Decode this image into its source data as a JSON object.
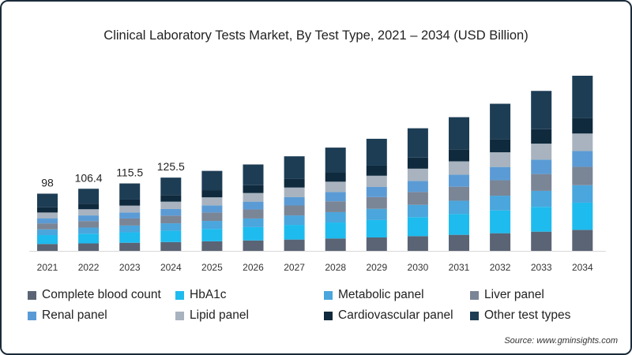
{
  "chart_data": {
    "type": "bar",
    "stacked": true,
    "title": "Clinical Laboratory Tests Market, By Test Type, 2021 – 2034 (USD Billion)",
    "xlabel": "",
    "ylabel": "",
    "ylim": [
      0,
      310
    ],
    "grid": false,
    "legend_position": "bottom",
    "categories": [
      "2021",
      "2022",
      "2023",
      "2024",
      "2025",
      "2026",
      "2027",
      "2028",
      "2029",
      "2030",
      "2031",
      "2032",
      "2033",
      "2034"
    ],
    "totals_labels": [
      "98",
      "106.4",
      "115.5",
      "125.5"
    ],
    "series": [
      {
        "name": "Complete blood count",
        "color": "#5a6475",
        "values": [
          11.8,
          12.8,
          13.9,
          15.1,
          16.4,
          17.8,
          19.4,
          21.2,
          23.0,
          25.2,
          27.5,
          30.2,
          32.9,
          36.0
        ]
      },
      {
        "name": "HbA1c",
        "color": "#1ebbee",
        "values": [
          15.2,
          16.5,
          17.9,
          19.5,
          21.2,
          22.9,
          25.1,
          27.4,
          29.8,
          32.6,
          35.5,
          39.1,
          42.5,
          46.5
        ]
      },
      {
        "name": "Metabolic panel",
        "color": "#4aa6dc",
        "values": [
          9.8,
          10.6,
          11.6,
          12.6,
          13.7,
          14.8,
          16.2,
          17.7,
          19.2,
          21.0,
          22.9,
          25.2,
          27.4,
          30.0
        ]
      },
      {
        "name": "Liver panel",
        "color": "#7a8596",
        "values": [
          10.3,
          11.2,
          12.1,
          13.2,
          14.4,
          15.5,
          17.0,
          18.6,
          20.2,
          22.1,
          24.0,
          26.5,
          28.8,
          31.5
        ]
      },
      {
        "name": "Renal panel",
        "color": "#5b9bd5",
        "values": [
          8.8,
          9.6,
          10.4,
          11.3,
          12.3,
          13.3,
          14.6,
          15.9,
          17.3,
          18.9,
          20.6,
          22.7,
          24.7,
          27.0
        ]
      },
      {
        "name": "Lipid panel",
        "color": "#a8b3bf",
        "values": [
          9.8,
          10.6,
          11.6,
          12.6,
          13.7,
          14.8,
          16.2,
          17.7,
          19.2,
          21.0,
          22.9,
          25.2,
          27.4,
          30.0
        ]
      },
      {
        "name": "Cardiovascular panel",
        "color": "#0f2a3d",
        "values": [
          8.8,
          9.6,
          10.4,
          11.3,
          12.3,
          13.3,
          14.6,
          15.9,
          17.3,
          18.9,
          20.6,
          22.7,
          24.7,
          27.0
        ]
      },
      {
        "name": "Other test types",
        "color": "#1d3d55",
        "values": [
          23.5,
          25.5,
          27.6,
          29.9,
          33.0,
          35.6,
          38.9,
          42.5,
          46.0,
          50.3,
          55.0,
          60.4,
          65.6,
          72.0
        ]
      }
    ],
    "source": "Source: www.gminsights.com"
  }
}
